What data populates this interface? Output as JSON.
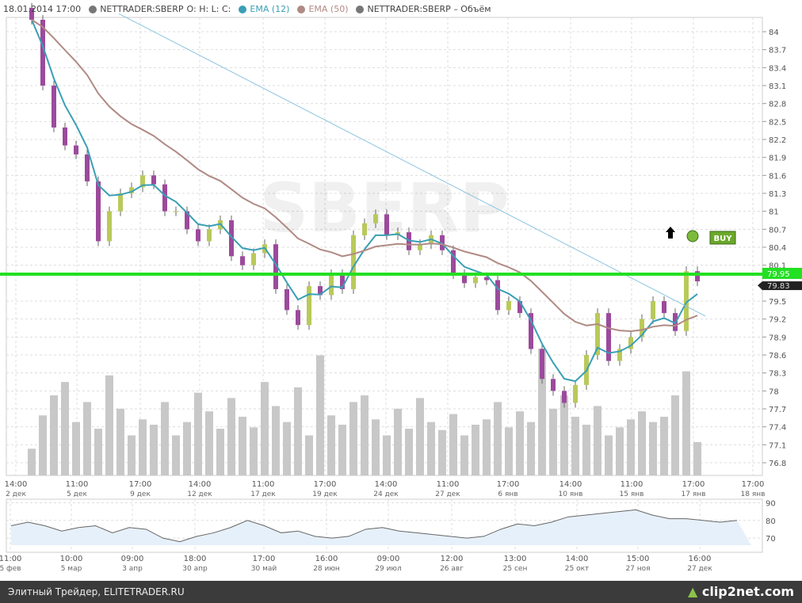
{
  "legend": {
    "datetime": "18.01.2014 17:00",
    "symbol": "NETTRADER:SBERP",
    "ohlc": "O:  H:  L:  C:",
    "ema12": "EMA (12)",
    "ema50": "EMA (50)",
    "volume": "NETTRADER:SBERP – Объём"
  },
  "colors": {
    "up": "#b9c95a",
    "down": "#9c4a9c",
    "ema12": "#3a9fb5",
    "ema50": "#b08a84",
    "volume": "#c8c8c8",
    "level": "#22e022",
    "trend": "#8cc4e0",
    "symbol_dot": "#777"
  },
  "watermark": "SBERP",
  "chart_data": {
    "type": "candlestick",
    "yticks": [
      "84",
      "83.7",
      "83.4",
      "83.1",
      "82.8",
      "82.5",
      "82.2",
      "81.9",
      "81.6",
      "81.3",
      "81",
      "80.7",
      "80.4",
      "80.1",
      "79.5",
      "79.2",
      "78.9",
      "78.6",
      "78.3",
      "78",
      "77.7",
      "77.4",
      "77.1",
      "76.8"
    ],
    "ylim": [
      76.8,
      84
    ],
    "xticks": [
      [
        "14:00",
        "2 дек"
      ],
      [
        "11:00",
        "5 дек"
      ],
      [
        "17:00",
        "9 дек"
      ],
      [
        "14:00",
        "12 дек"
      ],
      [
        "11:00",
        "17 дек"
      ],
      [
        "17:00",
        "19 дек"
      ],
      [
        "14:00",
        "24 дек"
      ],
      [
        "11:00",
        "27 дек"
      ],
      [
        "17:00",
        "6 янв"
      ],
      [
        "14:00",
        "10 янв"
      ],
      [
        "11:00",
        "15 янв"
      ],
      [
        "17:00",
        "17 янв"
      ],
      [
        "17:00",
        "18 янв"
      ]
    ],
    "close": [
      84.2,
      83.1,
      82.4,
      82.1,
      81.95,
      81.5,
      80.5,
      81.0,
      81.3,
      81.4,
      81.6,
      81.45,
      81.0,
      81.0,
      80.7,
      80.5,
      80.7,
      80.85,
      80.25,
      80.1,
      80.3,
      80.45,
      79.7,
      79.35,
      79.1,
      79.75,
      79.6,
      79.95,
      79.7,
      80.6,
      80.8,
      80.95,
      80.6,
      80.65,
      80.35,
      80.45,
      80.6,
      80.35,
      79.95,
      79.8,
      79.9,
      79.85,
      79.35,
      79.5,
      79.3,
      78.7,
      78.2,
      78.0,
      77.8,
      78.1,
      78.6,
      79.3,
      78.5,
      78.7,
      78.9,
      79.2,
      79.5,
      79.3,
      79.0,
      80.0,
      79.83
    ],
    "volume": [
      20,
      45,
      60,
      70,
      40,
      55,
      35,
      75,
      50,
      30,
      42,
      38,
      55,
      30,
      40,
      62,
      48,
      35,
      58,
      44,
      36,
      70,
      52,
      40,
      66,
      30,
      90,
      45,
      38,
      55,
      60,
      42,
      30,
      50,
      35,
      58,
      40,
      34,
      46,
      30,
      38,
      42,
      55,
      36,
      48,
      40,
      95,
      50,
      60,
      44,
      38,
      52,
      30,
      36,
      42,
      48,
      40,
      44,
      60,
      78,
      25
    ],
    "levels": [
      {
        "price": 79.95,
        "label": "79.95"
      },
      {
        "price": 79.83,
        "label": "79.83"
      }
    ],
    "trendline": {
      "from": [
        8,
        84.3
      ],
      "to": [
        61,
        79.25
      ]
    },
    "signal": "BUY",
    "navigator": {
      "values": [
        77,
        79,
        77,
        74,
        76,
        77,
        73,
        76,
        75,
        70,
        68,
        71,
        73,
        76,
        80,
        77,
        73,
        74,
        71,
        70,
        71,
        75,
        76,
        74,
        73,
        72,
        71,
        70,
        71,
        75,
        78,
        77,
        79,
        82,
        83,
        84,
        85,
        86,
        83,
        81,
        81,
        80,
        79,
        80
      ],
      "yticks": [
        "90",
        "80",
        "70"
      ],
      "ylim": [
        62,
        92
      ],
      "xticks": [
        [
          "11:00",
          "5 фев"
        ],
        [
          "10:00",
          "5 мар"
        ],
        [
          "09:00",
          "3 апр"
        ],
        [
          "18:00",
          "30 апр"
        ],
        [
          "17:00",
          "30 май"
        ],
        [
          "16:00",
          "28 июн"
        ],
        [
          "09:00",
          "29 июл"
        ],
        [
          "12:00",
          "26 авг"
        ],
        [
          "13:00",
          "25 сен"
        ],
        [
          "14:00",
          "25 окт"
        ],
        [
          "15:00",
          "27 ноя"
        ],
        [
          "16:00",
          "27 дек"
        ]
      ]
    }
  },
  "footer": {
    "text": "Элитный Трейдер, ELITETRADER.RU",
    "logo": "clip2net.com"
  }
}
